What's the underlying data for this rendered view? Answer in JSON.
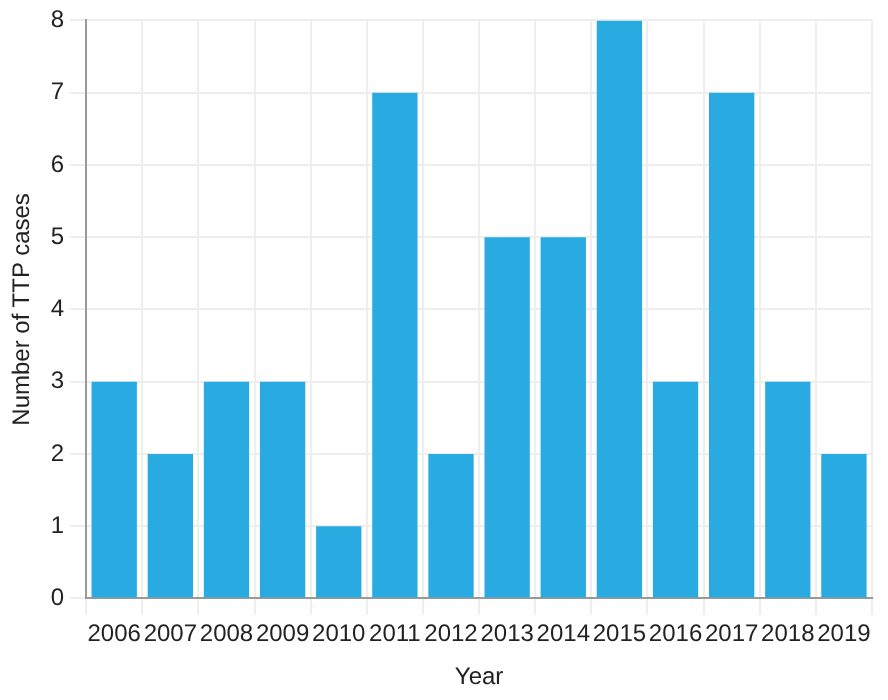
{
  "chart_data": {
    "type": "bar",
    "xlabel": "Year",
    "ylabel": "Number of TTP cases",
    "categories": [
      "2006",
      "2007",
      "2008",
      "2009",
      "2010",
      "2011",
      "2012",
      "2013",
      "2014",
      "2015",
      "2016",
      "2017",
      "2018",
      "2019"
    ],
    "values": [
      3,
      2,
      3,
      3,
      1,
      7,
      2,
      5,
      5,
      8,
      3,
      7,
      3,
      2
    ],
    "color": "#29abe2",
    "ylim": [
      0,
      8
    ],
    "yticks": [
      0,
      1,
      2,
      3,
      4,
      5,
      6,
      7,
      8
    ],
    "grid": true,
    "legend": false
  }
}
